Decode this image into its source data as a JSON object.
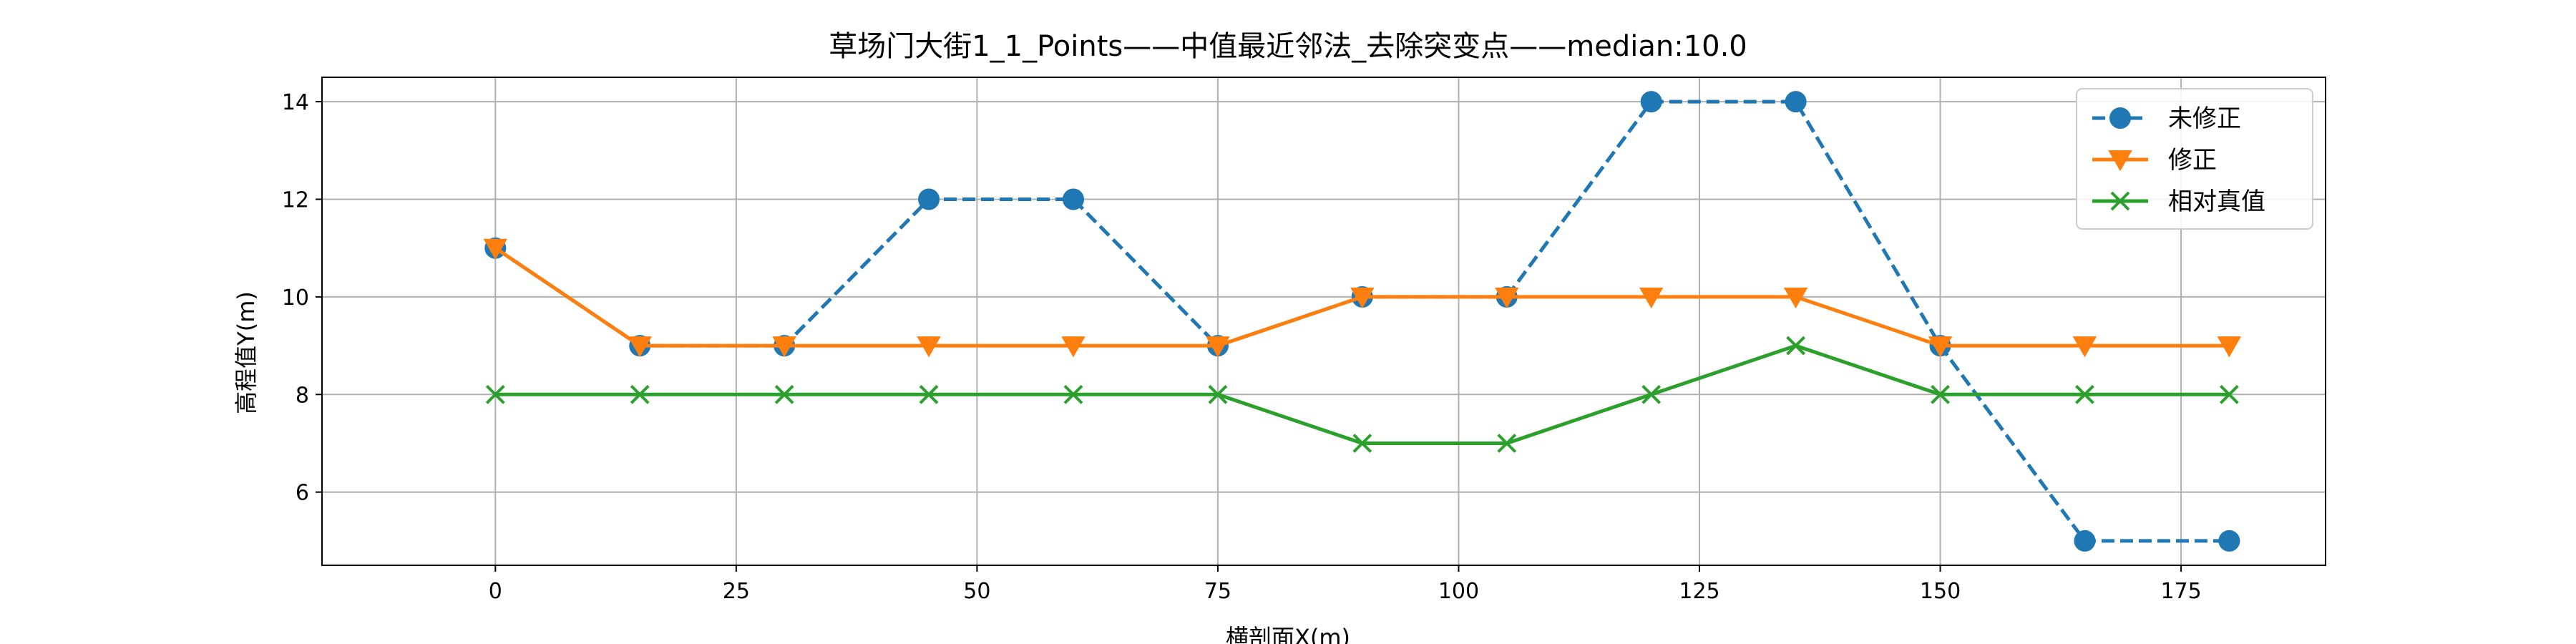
{
  "chart_data": {
    "type": "line",
    "title": "草场门大街1_1_Points——中值最近邻法_去除突变点——median:10.0",
    "xlabel": "横剖面X(m)",
    "ylabel": "高程值Y(m)",
    "xlim": [
      -18,
      190
    ],
    "ylim": [
      4.5,
      14.5
    ],
    "xticks": [
      0,
      25,
      50,
      75,
      100,
      125,
      150,
      175
    ],
    "yticks": [
      6,
      8,
      10,
      12,
      14
    ],
    "grid": true,
    "legend_position": "upper right",
    "x": [
      0,
      15,
      30,
      45,
      60,
      75,
      90,
      105,
      120,
      135,
      150,
      165,
      180
    ],
    "series": [
      {
        "name": "未修正",
        "values": [
          11,
          9,
          9,
          12,
          12,
          9,
          10,
          10,
          14,
          14,
          9,
          5,
          5
        ],
        "color": "#1f77b4",
        "linestyle": "dashed",
        "marker": "circle"
      },
      {
        "name": "修正",
        "values": [
          11,
          9,
          9,
          9,
          9,
          9,
          10,
          10,
          10,
          10,
          9,
          9,
          9
        ],
        "color": "#ff7f0e",
        "linestyle": "solid",
        "marker": "triangle-down"
      },
      {
        "name": "相对真值",
        "values": [
          8,
          8,
          8,
          8,
          8,
          8,
          7,
          7,
          8,
          9,
          8,
          8,
          8
        ],
        "color": "#2ca02c",
        "linestyle": "solid",
        "marker": "x"
      }
    ]
  }
}
